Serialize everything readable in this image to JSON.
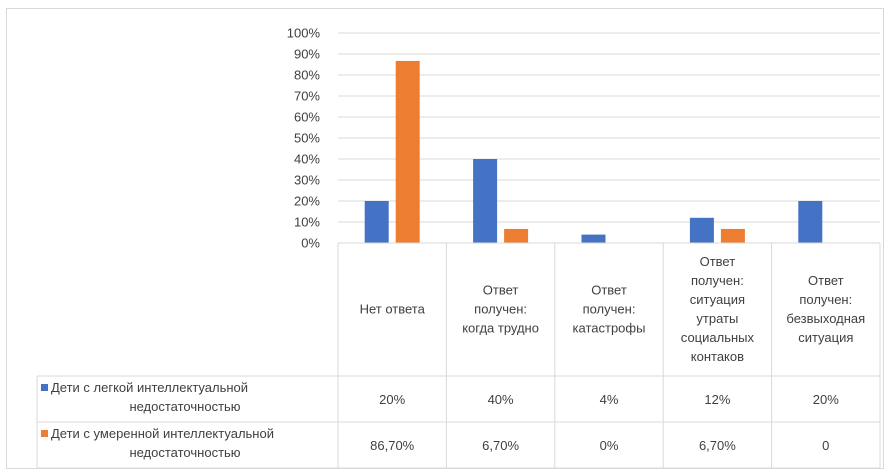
{
  "chart_data": {
    "type": "bar",
    "title": "",
    "xlabel": "",
    "ylabel": "",
    "ylim": [
      0,
      100
    ],
    "y_ticks": [
      "0%",
      "10%",
      "20%",
      "30%",
      "40%",
      "50%",
      "60%",
      "70%",
      "80%",
      "90%",
      "100%"
    ],
    "grid": true,
    "legend": "data-table-left",
    "categories": [
      [
        "Нет ответа"
      ],
      [
        "Ответ",
        "получен:",
        "когда трудно"
      ],
      [
        "Ответ",
        "получен:",
        "катастрофы"
      ],
      [
        "Ответ",
        "получен:",
        "ситуация",
        "утраты",
        "социальных",
        "контаков"
      ],
      [
        "Ответ",
        "получен:",
        "безвыходная",
        "ситуация"
      ]
    ],
    "series": [
      {
        "name": [
          "Дети с легкой интеллектуальной",
          "недостаточностью"
        ],
        "color": "#4472c4",
        "values": [
          20,
          40,
          4,
          12,
          20
        ],
        "labels": [
          "20%",
          "40%",
          "4%",
          "12%",
          "20%"
        ]
      },
      {
        "name": [
          "Дети с умеренной интеллектуальной",
          "недостаточностью"
        ],
        "color": "#ed7d31",
        "values": [
          86.7,
          6.7,
          0,
          6.7,
          0
        ],
        "labels": [
          "86,70%",
          "6,70%",
          "0%",
          "6,70%",
          "0"
        ]
      }
    ]
  }
}
